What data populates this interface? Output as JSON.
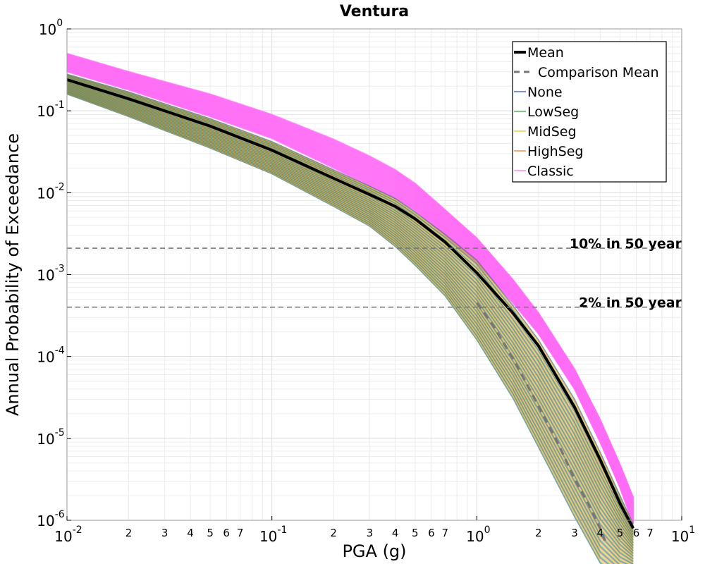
{
  "chart_data": {
    "type": "line",
    "title": "Ventura",
    "xlabel": "PGA (g)",
    "ylabel": "Annual Probability of Exceedance",
    "xscale": "log",
    "yscale": "log",
    "xlim": [
      0.01,
      10
    ],
    "ylim": [
      1e-06,
      1
    ],
    "grid": true,
    "legend_position": "top-right",
    "x_major_ticks": [
      {
        "base": "10",
        "exp": "-2"
      },
      {
        "base": "10",
        "exp": "-1"
      },
      {
        "base": "10",
        "exp": "0"
      },
      {
        "base": "10",
        "exp": "1"
      }
    ],
    "y_major_ticks": [
      {
        "base": "10",
        "exp": "0"
      },
      {
        "base": "10",
        "exp": "-1"
      },
      {
        "base": "10",
        "exp": "-2"
      },
      {
        "base": "10",
        "exp": "-3"
      },
      {
        "base": "10",
        "exp": "-4"
      },
      {
        "base": "10",
        "exp": "-5"
      },
      {
        "base": "10",
        "exp": "-6"
      }
    ],
    "x_minor_tick_labels": [
      "2",
      "3",
      "4",
      "5",
      "6",
      "7"
    ],
    "x": [
      0.01,
      0.02,
      0.05,
      0.1,
      0.2,
      0.3,
      0.4,
      0.5,
      0.7,
      1.0,
      1.5,
      2.0,
      3.0,
      4.0,
      5.0,
      5.8
    ],
    "mean": {
      "name": "Mean",
      "color": "#000000",
      "y": [
        0.24,
        0.14,
        0.065,
        0.033,
        0.015,
        0.0095,
        0.0068,
        0.0048,
        0.0025,
        0.00105,
        0.00034,
        0.000135,
        2.4e-05,
        5.5e-06,
        1.6e-06,
        8e-07
      ]
    },
    "comparison_mean": {
      "name": "Comparison Mean",
      "color": "#777777",
      "x": [
        1.0,
        1.2,
        1.5,
        2.0,
        2.5,
        3.0,
        3.5,
        4.0,
        4.3
      ],
      "y": [
        0.00045,
        0.00024,
        9.5e-05,
        2.5e-05,
        8.5e-06,
        3.2e-06,
        1.6e-06,
        8e-07,
        5e-07
      ]
    },
    "series": [
      {
        "name": "None",
        "color": "#2b4fb0"
      },
      {
        "name": "LowSeg",
        "color": "#3aa03a"
      },
      {
        "name": "MidSeg",
        "color": "#e8c21a"
      },
      {
        "name": "HighSeg",
        "color": "#f07a1a"
      },
      {
        "name": "Classic",
        "color": "#ff6ef5"
      }
    ],
    "bands": {
      "classic": {
        "upper": [
          0.5,
          0.3,
          0.16,
          0.09,
          0.045,
          0.028,
          0.019,
          0.013,
          0.0062,
          0.0028,
          0.00087,
          0.00034,
          7e-05,
          1.7e-05,
          4.8e-06,
          1.9e-06
        ],
        "lower": [
          0.3,
          0.18,
          0.085,
          0.046,
          0.02,
          0.012,
          0.0085,
          0.006,
          0.003,
          0.0014,
          0.00045,
          0.00019,
          4e-05,
          9e-06,
          2.5e-06,
          9e-07
        ]
      },
      "segmented": {
        "upper": [
          0.28,
          0.17,
          0.08,
          0.042,
          0.019,
          0.012,
          0.0085,
          0.0058,
          0.0031,
          0.0015,
          0.00042,
          0.00016,
          3e-05,
          6.8e-06,
          2e-06,
          9e-07
        ],
        "lower": [
          0.16,
          0.085,
          0.035,
          0.017,
          0.0068,
          0.0039,
          0.0022,
          0.0013,
          0.00055,
          0.00016,
          3.1e-05,
          7.8e-06,
          1.1e-06,
          3e-07,
          2e-07,
          2e-07
        ]
      }
    },
    "hlines": [
      {
        "label": "10% in 50 year",
        "y": 0.0021,
        "color": "#777777"
      },
      {
        "label": "2% in 50 year",
        "y": 0.0004,
        "color": "#777777"
      }
    ]
  }
}
